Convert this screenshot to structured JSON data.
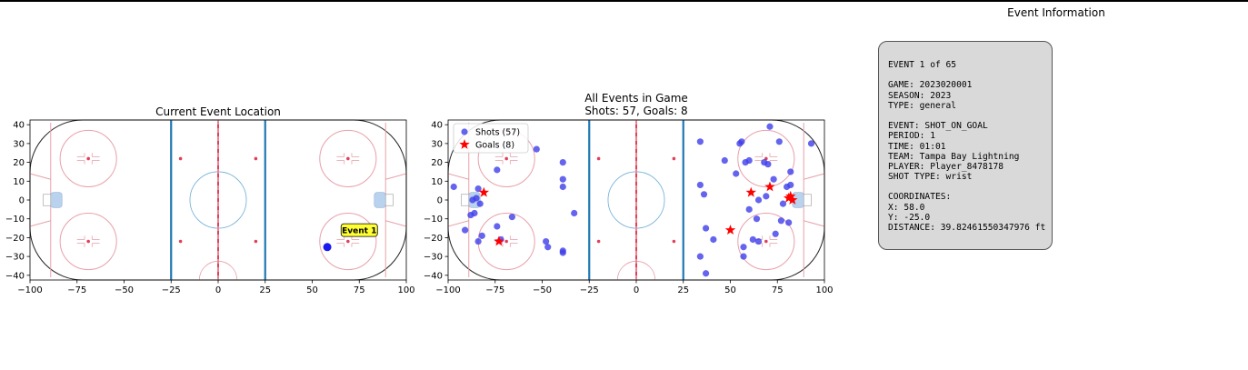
{
  "colors": {
    "rink_outline": "#222222",
    "red_line": "#e0405a",
    "blue_line": "#1f77b4",
    "thin_red": "#e8a0aa",
    "center_circle": "#6baed6",
    "crease": "#b9d2ee",
    "shot": "#3d3dea",
    "goal": "#ff0000",
    "highlight": "#0000ee",
    "label_bg": "#ffff33",
    "box_bg": "#d9d9d9"
  },
  "chart_data": [
    {
      "type": "scatter",
      "title": "Current Event Location",
      "xlim": [
        -100,
        100
      ],
      "ylim": [
        -42.5,
        42.5
      ],
      "xticks": [
        -100,
        -75,
        -50,
        -25,
        0,
        25,
        50,
        75,
        100
      ],
      "yticks": [
        -40,
        -30,
        -20,
        -10,
        0,
        10,
        20,
        30,
        40
      ],
      "grid": false,
      "points": [
        {
          "x": 58,
          "y": -25
        }
      ],
      "annotation": {
        "text": "Event 1",
        "x": 75,
        "y": -16
      }
    },
    {
      "type": "scatter",
      "title": "All Events in Game",
      "subtitle": "Shots: 57, Goals: 8",
      "xlim": [
        -100,
        100
      ],
      "ylim": [
        -42.5,
        42.5
      ],
      "xticks": [
        -100,
        -75,
        -50,
        -25,
        0,
        25,
        50,
        75,
        100
      ],
      "yticks": [
        -40,
        -30,
        -20,
        -10,
        0,
        10,
        20,
        30,
        40
      ],
      "grid": false,
      "legend_position": "top-left",
      "series": [
        {
          "name": "Shots (57)",
          "marker": "circle",
          "points": [
            [
              -97,
              7
            ],
            [
              -91,
              -16
            ],
            [
              -88,
              -8
            ],
            [
              -86,
              -7
            ],
            [
              -87,
              0
            ],
            [
              -85,
              1
            ],
            [
              -83,
              -2
            ],
            [
              -84,
              6
            ],
            [
              -84,
              -22
            ],
            [
              -82,
              -19
            ],
            [
              -74,
              -14
            ],
            [
              -74,
              16
            ],
            [
              -72,
              -21
            ],
            [
              -66,
              -9
            ],
            [
              -53,
              27
            ],
            [
              -48,
              -22
            ],
            [
              -47,
              -25
            ],
            [
              -39,
              -27
            ],
            [
              -39,
              -28
            ],
            [
              -39,
              20
            ],
            [
              -39,
              11
            ],
            [
              -39,
              7
            ],
            [
              -33,
              -7
            ],
            [
              34,
              31
            ],
            [
              34,
              8
            ],
            [
              34,
              -30
            ],
            [
              36,
              3
            ],
            [
              37,
              -15
            ],
            [
              37,
              -39
            ],
            [
              41,
              -21
            ],
            [
              47,
              21
            ],
            [
              53,
              14
            ],
            [
              55,
              30
            ],
            [
              56,
              31
            ],
            [
              57,
              -25
            ],
            [
              57,
              -30
            ],
            [
              58,
              20
            ],
            [
              60,
              -5
            ],
            [
              60,
              21
            ],
            [
              62,
              -21
            ],
            [
              64,
              -10
            ],
            [
              65,
              -22
            ],
            [
              65,
              0
            ],
            [
              68,
              20
            ],
            [
              69,
              2
            ],
            [
              70,
              19
            ],
            [
              71,
              39
            ],
            [
              73,
              11
            ],
            [
              74,
              -18
            ],
            [
              76,
              31
            ],
            [
              77,
              -11
            ],
            [
              78,
              -2
            ],
            [
              80,
              7
            ],
            [
              81,
              -12
            ],
            [
              82,
              8
            ],
            [
              82,
              15
            ],
            [
              93,
              30
            ]
          ]
        },
        {
          "name": "Goals (8)",
          "marker": "star",
          "points": [
            [
              -81,
              4
            ],
            [
              -73,
              -22
            ],
            [
              50,
              -16
            ],
            [
              61,
              4
            ],
            [
              71,
              7
            ],
            [
              81,
              1
            ],
            [
              82,
              2
            ],
            [
              83,
              0
            ]
          ]
        }
      ]
    }
  ],
  "info": {
    "title": "Event Information",
    "lines": [
      "EVENT 1 of 65",
      "",
      "GAME: 2023020001",
      "SEASON: 2023",
      "TYPE: general",
      "",
      "EVENT: SHOT_ON_GOAL",
      "PERIOD: 1",
      "TIME: 01:01",
      "TEAM: Tampa Bay Lightning",
      "PLAYER: Player_8478178",
      "SHOT TYPE: wrist",
      "",
      "COORDINATES:",
      "X: 58.0",
      "Y: -25.0",
      "DISTANCE: 39.82461550347976 ft"
    ]
  }
}
